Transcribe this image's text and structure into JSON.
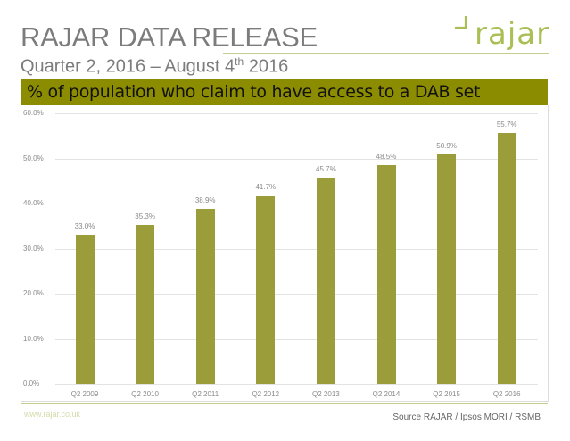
{
  "header": {
    "title": "RAJAR DATA RELEASE",
    "subtitle_prefix": "Quarter 2, 2016 – August 4",
    "subtitle_sup": "th",
    "subtitle_suffix": " 2016",
    "logo_text": "rajar"
  },
  "banner": {
    "text": "% of population who claim to have access to a DAB set",
    "color": "#8c8c00"
  },
  "footer": {
    "url": "www.rajar.co.uk",
    "source": "Source RAJAR / Ipsos MORI / RSMB"
  },
  "chart_data": {
    "type": "bar",
    "title": "% of population who claim to have access to a DAB set",
    "xlabel": "",
    "ylabel": "",
    "categories": [
      "Q2 2009",
      "Q2 2010",
      "Q2 2011",
      "Q2 2012",
      "Q2 2013",
      "Q2 2014",
      "Q2 2015",
      "Q2 2016"
    ],
    "values": [
      33.0,
      35.3,
      38.9,
      41.7,
      45.7,
      48.5,
      50.9,
      55.7
    ],
    "value_labels": [
      "33.0%",
      "35.3%",
      "38.9%",
      "41.7%",
      "45.7%",
      "48.5%",
      "50.9%",
      "55.7%"
    ],
    "ylim": [
      0,
      60
    ],
    "yticks": [
      "0.0%",
      "10.0%",
      "20.0%",
      "30.0%",
      "40.0%",
      "50.0%",
      "60.0%"
    ],
    "grid": true,
    "legend": "none",
    "bar_color": "#9b9c3a"
  }
}
